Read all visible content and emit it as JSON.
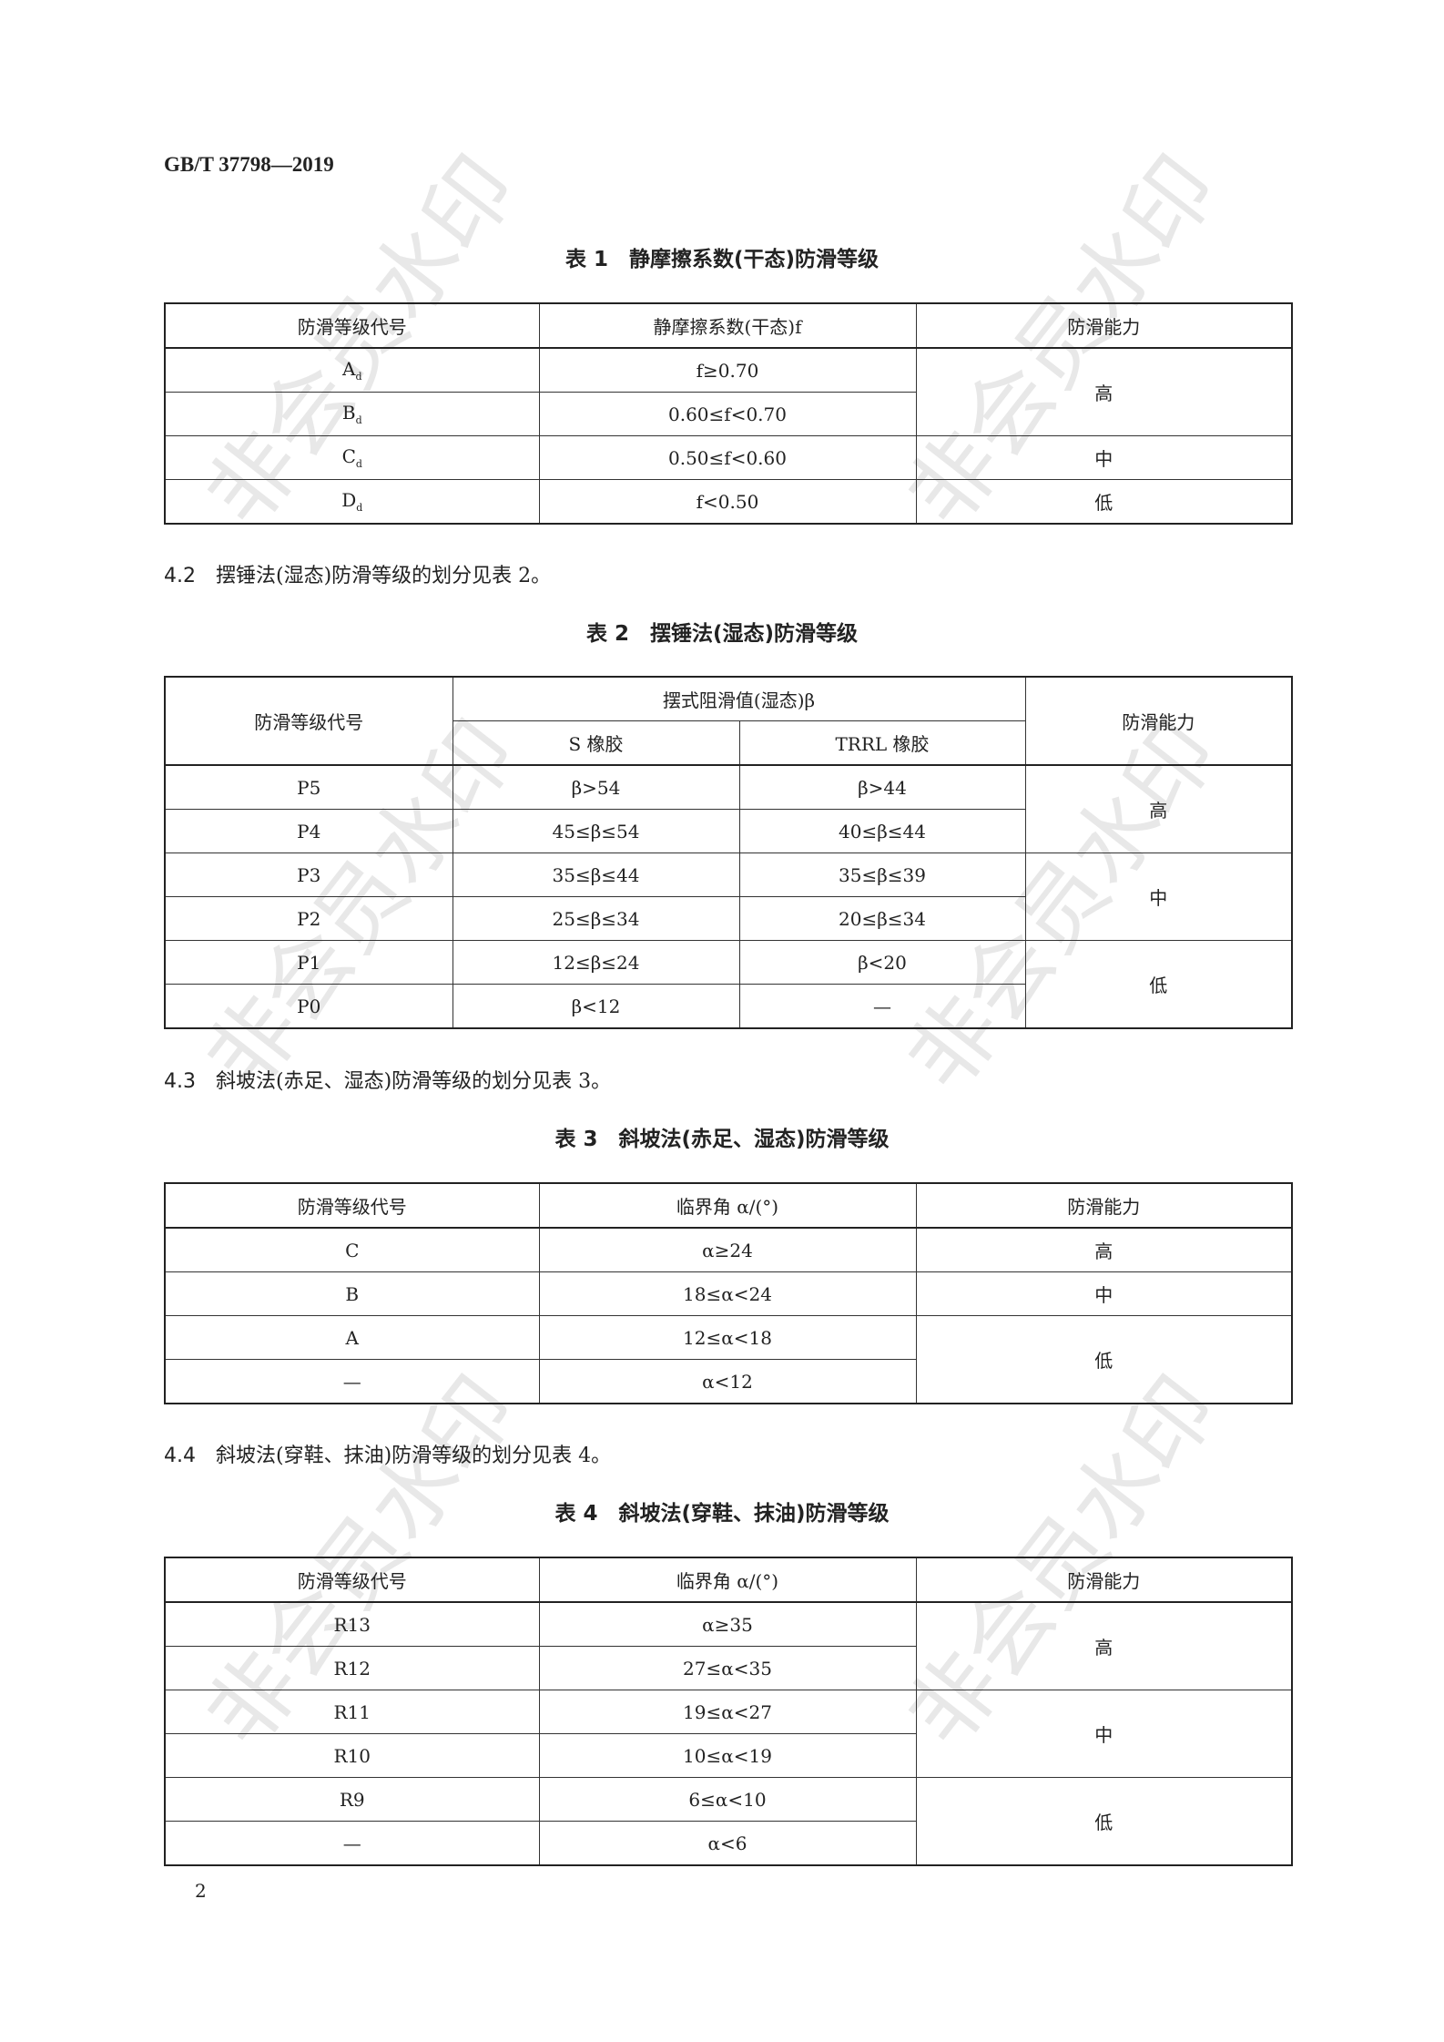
{
  "header": "GB/T 37798—2019",
  "watermark": "非会员水印",
  "table1": {
    "title": "表 1　静摩擦系数(干态)防滑等级",
    "headers": [
      "防滑等级代号",
      "静摩擦系数(干态)f",
      "防滑能力"
    ],
    "rows": [
      {
        "code": "A",
        "sub": "d",
        "value": "f≥0.70"
      },
      {
        "code": "B",
        "sub": "d",
        "value": "0.60≤f<0.70"
      },
      {
        "code": "C",
        "sub": "d",
        "value": "0.50≤f<0.60"
      },
      {
        "code": "D",
        "sub": "d",
        "value": "f<0.50"
      }
    ],
    "ability": [
      "高",
      "中",
      "低"
    ]
  },
  "clause42": {
    "num": "4.2",
    "text": "摆锤法(湿态)防滑等级的划分见表 2。"
  },
  "table2": {
    "title": "表 2　摆锤法(湿态)防滑等级",
    "headers": [
      "防滑等级代号",
      "摆式阻滑值(湿态)β",
      "防滑能力"
    ],
    "subheaders": [
      "S 橡胶",
      "TRRL 橡胶"
    ],
    "rows": [
      {
        "code": "P5",
        "s": "β>54",
        "trrl": "β>44"
      },
      {
        "code": "P4",
        "s": "45≤β≤54",
        "trrl": "40≤β≤44"
      },
      {
        "code": "P3",
        "s": "35≤β≤44",
        "trrl": "35≤β≤39"
      },
      {
        "code": "P2",
        "s": "25≤β≤34",
        "trrl": "20≤β≤34"
      },
      {
        "code": "P1",
        "s": "12≤β≤24",
        "trrl": "β<20"
      },
      {
        "code": "P0",
        "s": "β<12",
        "trrl": "—"
      }
    ],
    "ability": [
      "高",
      "中",
      "低"
    ]
  },
  "clause43": {
    "num": "4.3",
    "text": "斜坡法(赤足、湿态)防滑等级的划分见表 3。"
  },
  "table3": {
    "title": "表 3　斜坡法(赤足、湿态)防滑等级",
    "headers": [
      "防滑等级代号",
      "临界角 α/(°)",
      "防滑能力"
    ],
    "rows": [
      {
        "code": "C",
        "value": "α≥24"
      },
      {
        "code": "B",
        "value": "18≤α<24"
      },
      {
        "code": "A",
        "value": "12≤α<18"
      },
      {
        "code": "—",
        "value": "α<12"
      }
    ],
    "ability": [
      "高",
      "中",
      "低"
    ]
  },
  "clause44": {
    "num": "4.4",
    "text": "斜坡法(穿鞋、抹油)防滑等级的划分见表 4。"
  },
  "table4": {
    "title": "表 4　斜坡法(穿鞋、抹油)防滑等级",
    "headers": [
      "防滑等级代号",
      "临界角 α/(°)",
      "防滑能力"
    ],
    "rows": [
      {
        "code": "R13",
        "value": "α≥35"
      },
      {
        "code": "R12",
        "value": "27≤α<35"
      },
      {
        "code": "R11",
        "value": "19≤α<27"
      },
      {
        "code": "R10",
        "value": "10≤α<19"
      },
      {
        "code": "R9",
        "value": "6≤α<10"
      },
      {
        "code": "—",
        "value": "α<6"
      }
    ],
    "ability": [
      "高",
      "中",
      "低"
    ]
  },
  "page_number": "2"
}
